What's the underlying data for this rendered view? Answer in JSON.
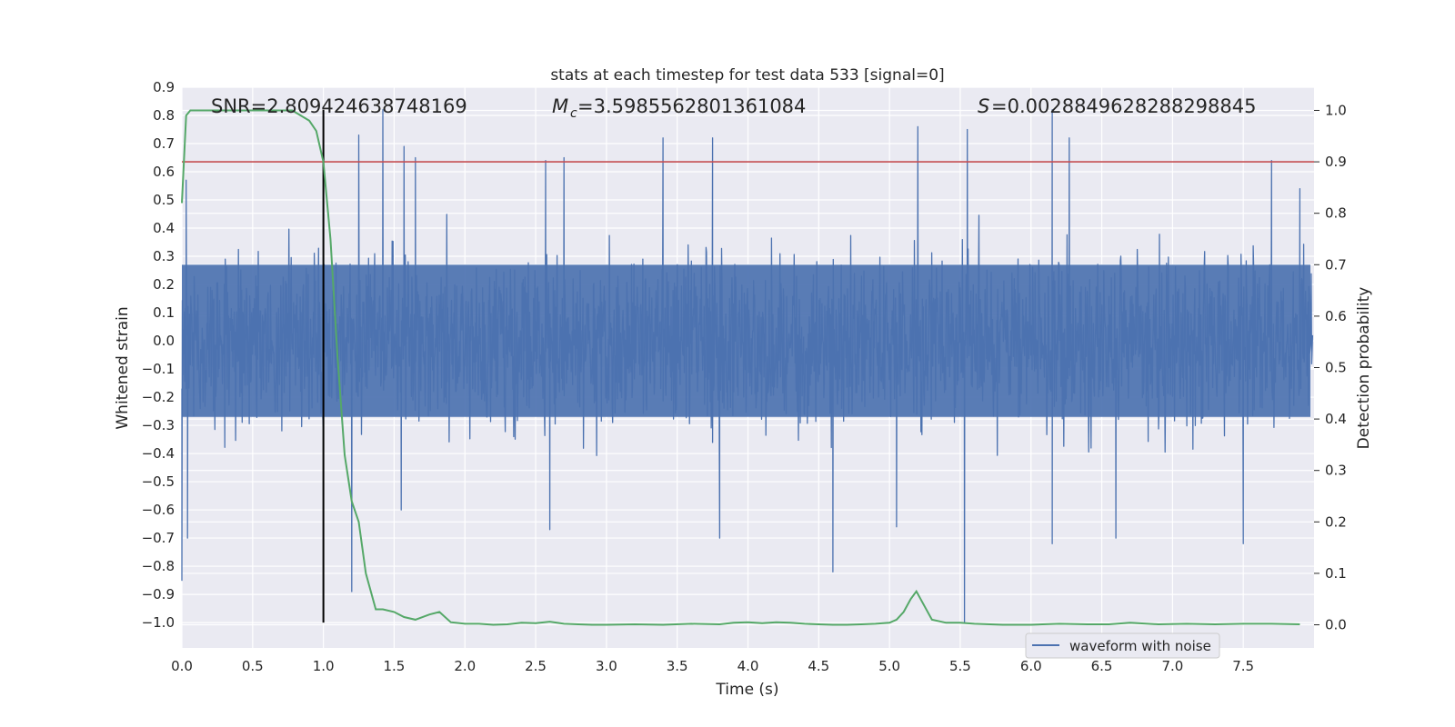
{
  "chart_data": {
    "type": "line",
    "title": "stats at each timestep for test data 533 [signal=0]",
    "xlabel": "Time (s)",
    "ylabel": "Whitened strain",
    "y2label": "Detection probability",
    "xlim": [
      0.0,
      8.0
    ],
    "ylim": [
      -1.09,
      0.9
    ],
    "y2lim": [
      -0.045,
      1.045
    ],
    "x_ticks": [
      "0.0",
      "0.5",
      "1.0",
      "1.5",
      "2.0",
      "2.5",
      "3.0",
      "3.5",
      "4.0",
      "4.5",
      "5.0",
      "5.5",
      "6.0",
      "6.5",
      "7.0",
      "7.5"
    ],
    "y_ticks": [
      "0.9",
      "0.8",
      "0.7",
      "0.6",
      "0.5",
      "0.4",
      "0.3",
      "0.2",
      "0.1",
      "0.0",
      "−0.1",
      "−0.2",
      "−0.3",
      "−0.4",
      "−0.5",
      "−0.6",
      "−0.7",
      "−0.8",
      "−0.9",
      "−1.0"
    ],
    "y2_ticks": [
      "0.0",
      "0.1",
      "0.2",
      "0.3",
      "0.4",
      "0.5",
      "0.6",
      "0.7",
      "0.8",
      "0.9",
      "1.0"
    ],
    "grid": true,
    "legend": {
      "placement": "lower-right",
      "entries": [
        "waveform with noise"
      ]
    },
    "annotations": {
      "snr": "SNR=2.809424638748169",
      "mc_value": "=3.5985562801361084",
      "s_value": "=0.0028849628288298845"
    },
    "reference_lines": {
      "threshold_probability": 0.9,
      "marker_time": 1.0,
      "marker_y_range": [
        -1.0,
        0.82
      ]
    },
    "series": [
      {
        "name": "waveform with noise",
        "color": "#4c72b0",
        "description_envelope": {
          "core_amplitude": 0.28,
          "typical_peak": 0.45,
          "spikes": [
            [
              0.0,
              -0.85
            ],
            [
              0.03,
              0.57
            ],
            [
              0.04,
              -0.7
            ],
            [
              1.0,
              0.43
            ],
            [
              1.0,
              -0.55
            ],
            [
              1.2,
              -0.89
            ],
            [
              1.25,
              0.73
            ],
            [
              1.42,
              0.82
            ],
            [
              1.57,
              0.69
            ],
            [
              1.65,
              0.65
            ],
            [
              1.55,
              -0.6
            ],
            [
              2.57,
              0.64
            ],
            [
              2.6,
              -0.67
            ],
            [
              2.7,
              0.65
            ],
            [
              3.4,
              0.72
            ],
            [
              3.75,
              0.72
            ],
            [
              3.8,
              -0.7
            ],
            [
              4.6,
              -0.82
            ],
            [
              5.05,
              -0.66
            ],
            [
              5.2,
              0.76
            ],
            [
              5.53,
              -1.0
            ],
            [
              5.55,
              0.75
            ],
            [
              6.15,
              0.82
            ],
            [
              6.27,
              0.72
            ],
            [
              6.15,
              -0.72
            ],
            [
              6.6,
              -0.7
            ],
            [
              7.5,
              -0.72
            ],
            [
              7.7,
              0.64
            ],
            [
              7.9,
              0.54
            ]
          ]
        }
      },
      {
        "name": "",
        "color": "#55a868",
        "axis": "right",
        "x": [
          0.0,
          0.03,
          0.06,
          0.12,
          0.2,
          0.3,
          0.4,
          0.5,
          0.6,
          0.7,
          0.78,
          0.84,
          0.9,
          0.95,
          1.0,
          1.05,
          1.1,
          1.15,
          1.2,
          1.25,
          1.3,
          1.37,
          1.42,
          1.5,
          1.57,
          1.65,
          1.75,
          1.82,
          1.9,
          2.0,
          2.1,
          2.2,
          2.3,
          2.4,
          2.5,
          2.6,
          2.7,
          2.8,
          2.9,
          3.0,
          3.2,
          3.4,
          3.6,
          3.8,
          3.9,
          4.0,
          4.1,
          4.2,
          4.3,
          4.4,
          4.5,
          4.6,
          4.7,
          4.8,
          4.9,
          5.0,
          5.05,
          5.1,
          5.15,
          5.19,
          5.25,
          5.3,
          5.4,
          5.5,
          5.6,
          5.8,
          6.0,
          6.2,
          6.4,
          6.55,
          6.7,
          6.9,
          7.1,
          7.3,
          7.5,
          7.7,
          7.9
        ],
        "values": [
          0.82,
          0.99,
          1.0,
          1.0,
          1.0,
          1.0,
          1.0,
          1.0,
          1.0,
          1.0,
          1.0,
          0.99,
          0.98,
          0.96,
          0.9,
          0.75,
          0.52,
          0.33,
          0.24,
          0.2,
          0.1,
          0.03,
          0.03,
          0.025,
          0.015,
          0.01,
          0.02,
          0.025,
          0.005,
          0.002,
          0.002,
          0.0,
          0.001,
          0.004,
          0.003,
          0.006,
          0.002,
          0.001,
          0.0,
          0.0,
          0.001,
          0.0,
          0.002,
          0.001,
          0.004,
          0.005,
          0.003,
          0.005,
          0.004,
          0.002,
          0.001,
          0.0,
          0.0,
          0.001,
          0.002,
          0.004,
          0.01,
          0.025,
          0.05,
          0.065,
          0.035,
          0.01,
          0.004,
          0.004,
          0.002,
          0.0,
          0.0,
          0.002,
          0.001,
          0.001,
          0.004,
          0.001,
          0.002,
          0.001,
          0.002,
          0.002,
          0.001
        ]
      }
    ]
  }
}
